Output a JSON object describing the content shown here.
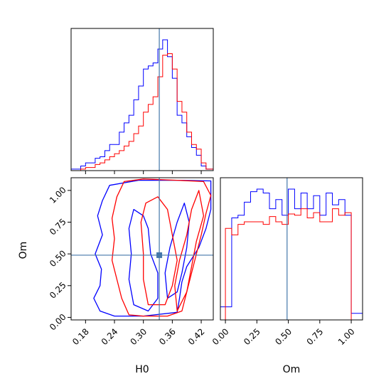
{
  "colors": {
    "blue": "#0000ff",
    "red": "#ff0000",
    "truth": "#4477aa",
    "axes": "#000000"
  },
  "chart_data": [
    {
      "type": "histogram",
      "panel": "H0 marginal",
      "xlim": [
        0.15,
        0.445
      ],
      "truth": 0.333,
      "x_ticks": [
        0.18,
        0.24,
        0.3,
        0.36,
        0.42
      ],
      "bin_edges": [
        0.15,
        0.16,
        0.17,
        0.18,
        0.19,
        0.2,
        0.21,
        0.22,
        0.23,
        0.24,
        0.25,
        0.26,
        0.27,
        0.28,
        0.29,
        0.3,
        0.31,
        0.32,
        0.33,
        0.34,
        0.35,
        0.36,
        0.37,
        0.38,
        0.39,
        0.4,
        0.41,
        0.42,
        0.43,
        0.445
      ],
      "series": [
        {
          "color": "blue",
          "values": [
            1,
            1,
            3,
            5,
            5,
            8,
            9,
            13,
            17,
            17,
            25,
            31,
            36,
            46,
            55,
            66,
            68,
            70,
            79,
            85,
            74,
            60,
            36,
            31,
            22,
            15,
            10,
            3,
            1
          ]
        },
        {
          "color": "red",
          "values": [
            0,
            0,
            1,
            2,
            2,
            4,
            5,
            7,
            9,
            11,
            13,
            16,
            19,
            24,
            29,
            38,
            43,
            48,
            61,
            75,
            76,
            66,
            45,
            38,
            25,
            17,
            14,
            5,
            1
          ]
        }
      ]
    },
    {
      "type": "contour",
      "panel": "H0 vs Om",
      "xlabel": "H0",
      "ylabel": "Om",
      "xlim": [
        0.15,
        0.445
      ],
      "ylim": [
        -0.02,
        1.1
      ],
      "x_ticks": [
        0.18,
        0.24,
        0.3,
        0.36,
        0.42
      ],
      "x_tick_labels": [
        "0.18",
        "0.24",
        "0.30",
        "0.36",
        "0.42"
      ],
      "y_ticks": [
        0.0,
        0.25,
        0.5,
        0.75,
        1.0
      ],
      "y_tick_labels": [
        "0.00",
        "0.25",
        "0.50",
        "0.75",
        "1.00"
      ],
      "truth": [
        0.333,
        0.49
      ],
      "contours": [
        {
          "color": "blue",
          "points": [
            [
              0.21,
              0.05
            ],
            [
              0.197,
              0.15
            ],
            [
              0.21,
              0.25
            ],
            [
              0.213,
              0.38
            ],
            [
              0.2,
              0.5
            ],
            [
              0.215,
              0.65
            ],
            [
              0.205,
              0.8
            ],
            [
              0.215,
              0.92
            ],
            [
              0.23,
              1.04
            ],
            [
              0.29,
              1.08
            ],
            [
              0.38,
              1.08
            ],
            [
              0.44,
              1.075
            ],
            [
              0.44,
              0.85
            ],
            [
              0.43,
              0.7
            ],
            [
              0.415,
              0.55
            ],
            [
              0.39,
              0.4
            ],
            [
              0.38,
              0.28
            ],
            [
              0.375,
              0.15
            ],
            [
              0.37,
              0.04
            ],
            [
              0.3,
              0.01
            ],
            [
              0.24,
              0.01
            ],
            [
              0.21,
              0.05
            ]
          ]
        },
        {
          "color": "blue",
          "points": [
            [
              0.28,
              0.1
            ],
            [
              0.27,
              0.3
            ],
            [
              0.275,
              0.5
            ],
            [
              0.27,
              0.7
            ],
            [
              0.28,
              0.85
            ],
            [
              0.3,
              0.8
            ],
            [
              0.31,
              0.7
            ],
            [
              0.315,
              0.5
            ],
            [
              0.33,
              0.35
            ],
            [
              0.33,
              0.15
            ],
            [
              0.31,
              0.05
            ],
            [
              0.28,
              0.1
            ]
          ]
        },
        {
          "color": "blue",
          "points": [
            [
              0.35,
              0.15
            ],
            [
              0.345,
              0.35
            ],
            [
              0.355,
              0.55
            ],
            [
              0.37,
              0.75
            ],
            [
              0.385,
              0.9
            ],
            [
              0.395,
              0.75
            ],
            [
              0.39,
              0.55
            ],
            [
              0.38,
              0.35
            ],
            [
              0.37,
              0.2
            ],
            [
              0.35,
              0.15
            ]
          ]
        },
        {
          "color": "red",
          "points": [
            [
              0.27,
              0.02
            ],
            [
              0.255,
              0.15
            ],
            [
              0.245,
              0.3
            ],
            [
              0.235,
              0.45
            ],
            [
              0.24,
              0.62
            ],
            [
              0.235,
              0.78
            ],
            [
              0.245,
              0.95
            ],
            [
              0.26,
              1.07
            ],
            [
              0.3,
              1.09
            ],
            [
              0.37,
              1.08
            ],
            [
              0.425,
              1.07
            ],
            [
              0.44,
              0.96
            ],
            [
              0.43,
              0.82
            ],
            [
              0.42,
              0.65
            ],
            [
              0.41,
              0.5
            ],
            [
              0.4,
              0.35
            ],
            [
              0.39,
              0.2
            ],
            [
              0.38,
              0.05
            ],
            [
              0.35,
              0.01
            ],
            [
              0.3,
              0.01
            ],
            [
              0.27,
              0.02
            ]
          ]
        },
        {
          "color": "red",
          "points": [
            [
              0.31,
              0.1
            ],
            [
              0.3,
              0.3
            ],
            [
              0.3,
              0.5
            ],
            [
              0.295,
              0.75
            ],
            [
              0.305,
              0.9
            ],
            [
              0.33,
              0.95
            ],
            [
              0.35,
              0.85
            ],
            [
              0.36,
              0.65
            ],
            [
              0.37,
              0.45
            ],
            [
              0.36,
              0.25
            ],
            [
              0.345,
              0.1
            ],
            [
              0.31,
              0.1
            ]
          ]
        },
        {
          "color": "red",
          "points": [
            [
              0.37,
              0.05
            ],
            [
              0.365,
              0.25
            ],
            [
              0.375,
              0.45
            ],
            [
              0.39,
              0.65
            ],
            [
              0.4,
              0.85
            ],
            [
              0.415,
              1.0
            ],
            [
              0.425,
              0.8
            ],
            [
              0.41,
              0.6
            ],
            [
              0.4,
              0.4
            ],
            [
              0.39,
              0.2
            ],
            [
              0.37,
              0.05
            ]
          ]
        }
      ]
    },
    {
      "type": "histogram",
      "panel": "Om marginal",
      "xlabel": "Om",
      "xlim": [
        -0.04,
        1.09
      ],
      "truth": 0.49,
      "x_ticks": [
        0.0,
        0.25,
        0.5,
        0.75,
        1.0
      ],
      "x_tick_labels": [
        "0.00",
        "0.25",
        "0.50",
        "0.75",
        "1.00"
      ],
      "bin_edges": [
        -0.04,
        0.0,
        0.05,
        0.1,
        0.15,
        0.2,
        0.25,
        0.3,
        0.35,
        0.4,
        0.45,
        0.5,
        0.55,
        0.6,
        0.65,
        0.7,
        0.75,
        0.8,
        0.85,
        0.9,
        0.95,
        1.0,
        1.05,
        1.09
      ],
      "series": [
        {
          "color": "blue",
          "values": [
            10,
            10,
            78,
            80,
            90,
            98,
            100,
            97,
            85,
            92,
            80,
            100,
            85,
            97,
            85,
            95,
            80,
            97,
            88,
            92,
            80,
            5,
            5
          ]
        },
        {
          "color": "red",
          "values": [
            0,
            70,
            65,
            73,
            75,
            75,
            75,
            73,
            79,
            75,
            73,
            81,
            80,
            85,
            78,
            82,
            75,
            75,
            85,
            80,
            82,
            0,
            0
          ]
        }
      ]
    }
  ]
}
